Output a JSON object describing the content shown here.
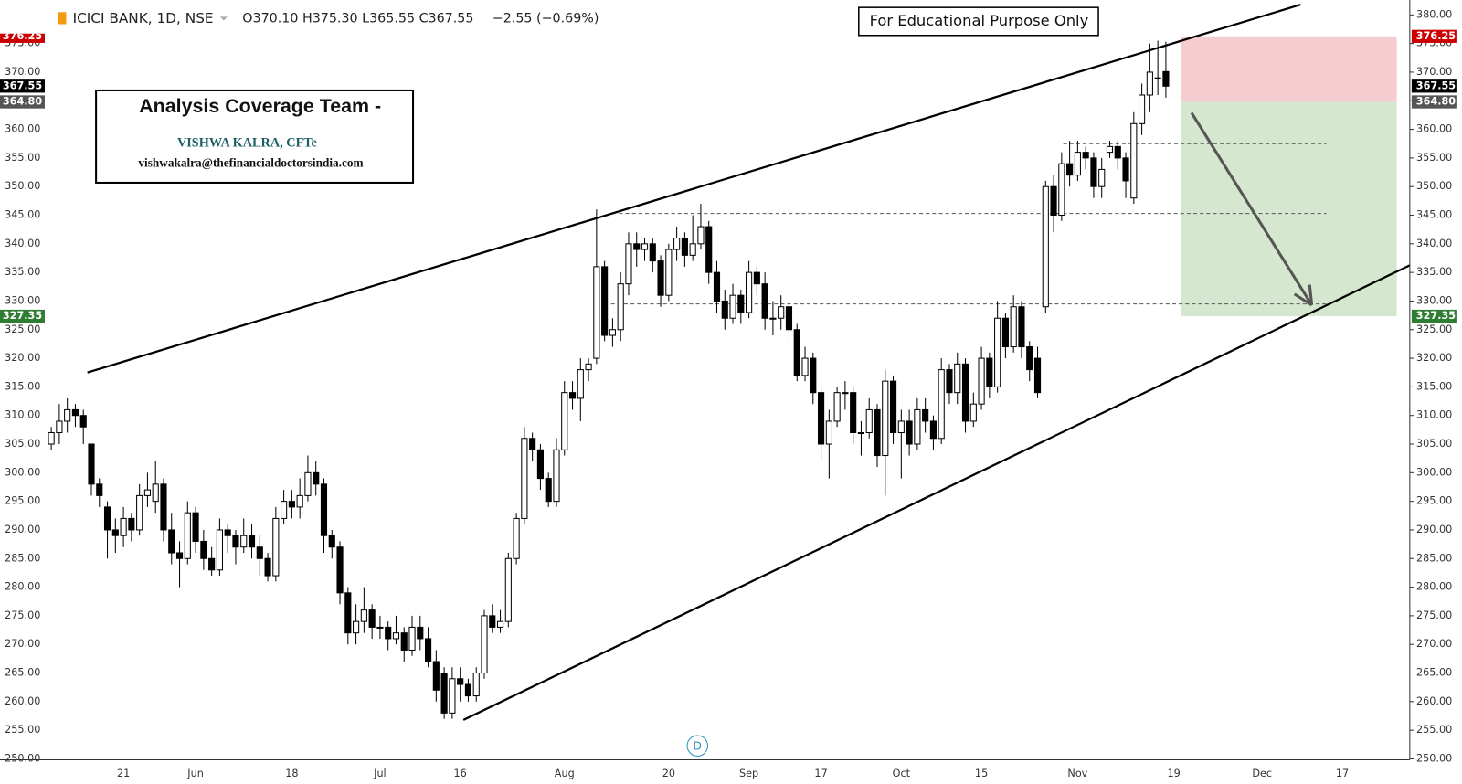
{
  "chart_data": {
    "type": "candlestick",
    "symbol": "ICICI BANK, 1D, NSE",
    "ohlc_text": "O370.10 H375.30 L365.55 C367.55",
    "change_text": "−2.55 (−0.69%)",
    "notice": "For Educational Purpose Only",
    "team_title": "Analysis Coverage Team -",
    "analyst": "VISHWA KALRA, CFTe",
    "email": "vishwakalra@thefinancialdoctorsindia.com",
    "event_marker": "D",
    "up_color": "#ffffff",
    "down_color": "#000000",
    "ylim": [
      250,
      380
    ],
    "yticks": [
      {
        "value": 250,
        "label": "250.00"
      },
      {
        "value": 255,
        "label": "255.00"
      },
      {
        "value": 260,
        "label": "260.00"
      },
      {
        "value": 265,
        "label": "265.00"
      },
      {
        "value": 270,
        "label": "270.00"
      },
      {
        "value": 275,
        "label": "275.00"
      },
      {
        "value": 280,
        "label": "280.00"
      },
      {
        "value": 285,
        "label": "285.00"
      },
      {
        "value": 290,
        "label": "290.00"
      },
      {
        "value": 295,
        "label": "295.00"
      },
      {
        "value": 300,
        "label": "300.00"
      },
      {
        "value": 305,
        "label": "305.00"
      },
      {
        "value": 310,
        "label": "310.00"
      },
      {
        "value": 315,
        "label": "315.00"
      },
      {
        "value": 320,
        "label": "320.00"
      },
      {
        "value": 325,
        "label": "325.00"
      },
      {
        "value": 330,
        "label": "330.00"
      },
      {
        "value": 335,
        "label": "335.00"
      },
      {
        "value": 340,
        "label": "340.00"
      },
      {
        "value": 345,
        "label": "345.00"
      },
      {
        "value": 350,
        "label": "350.00"
      },
      {
        "value": 355,
        "label": "355.00"
      },
      {
        "value": 360,
        "label": "360.00"
      },
      {
        "value": 365,
        "label": "365.00"
      },
      {
        "value": 370,
        "label": "370.00"
      },
      {
        "value": 375,
        "label": "375.00"
      },
      {
        "value": 380,
        "label": "380.00"
      }
    ],
    "price_markers": [
      {
        "value": 376.25,
        "label": "376.25",
        "color": "#cc0000"
      },
      {
        "value": 367.55,
        "label": "367.55",
        "color": "#000000"
      },
      {
        "value": 364.8,
        "label": "364.80",
        "color": "#555555"
      },
      {
        "value": 327.35,
        "label": "327.35",
        "color": "#2e7d32"
      }
    ],
    "categories": [
      null,
      null,
      null,
      null,
      null,
      null,
      null,
      null,
      null,
      "21",
      null,
      null,
      null,
      null,
      null,
      null,
      null,
      null,
      "Jun",
      null,
      null,
      null,
      null,
      null,
      null,
      null,
      null,
      null,
      null,
      null,
      "18",
      null,
      null,
      null,
      null,
      null,
      null,
      null,
      null,
      null,
      null,
      "Jul",
      null,
      null,
      null,
      null,
      null,
      null,
      null,
      null,
      null,
      "16",
      null,
      null,
      null,
      null,
      null,
      null,
      null,
      null,
      null,
      null,
      null,
      null,
      "Aug",
      null,
      null,
      null,
      null,
      null,
      null,
      null,
      null,
      null,
      null,
      null,
      null,
      "20",
      null,
      null,
      null,
      null,
      null,
      null,
      null,
      null,
      null,
      "Sep",
      null,
      null,
      null,
      null,
      null,
      null,
      null,
      null,
      "17",
      null,
      null,
      null,
      null,
      null,
      null,
      null,
      null,
      null,
      "Oct",
      null,
      null,
      null,
      null,
      null,
      null,
      null,
      null,
      null,
      "15",
      null,
      null,
      null,
      null,
      null,
      null,
      null,
      null,
      null,
      null,
      null,
      "Nov",
      null,
      null,
      null,
      null,
      null,
      null,
      null,
      null,
      null,
      null,
      null,
      "19",
      null,
      null,
      null,
      null,
      null,
      null,
      null,
      null,
      null,
      null,
      "Dec",
      null,
      null,
      null,
      null,
      null,
      null,
      null,
      null,
      null,
      "17",
      null,
      null,
      null,
      null,
      null,
      null,
      null,
      null
    ],
    "ohlc": [
      [
        305,
        308,
        304,
        307
      ],
      [
        307,
        312,
        305,
        309
      ],
      [
        309,
        313,
        307,
        311
      ],
      [
        311,
        312,
        308,
        310
      ],
      [
        310,
        311,
        305,
        308
      ],
      [
        305,
        305,
        296,
        298
      ],
      [
        298,
        299,
        294,
        296
      ],
      [
        294,
        295,
        285,
        290
      ],
      [
        290,
        292,
        286,
        289
      ],
      [
        289,
        294,
        287,
        292
      ],
      [
        292,
        293,
        288,
        290
      ],
      [
        290,
        298,
        289,
        296
      ],
      [
        296,
        300,
        294,
        297
      ],
      [
        295,
        302,
        293,
        298
      ],
      [
        298,
        299,
        288,
        290
      ],
      [
        290,
        293,
        284,
        286
      ],
      [
        286,
        288,
        280,
        285
      ],
      [
        285,
        295,
        284,
        293
      ],
      [
        293,
        294,
        286,
        288
      ],
      [
        288,
        290,
        283,
        285
      ],
      [
        285,
        287,
        282,
        283
      ],
      [
        283,
        292,
        282,
        290
      ],
      [
        290,
        291,
        286,
        289
      ],
      [
        289,
        290,
        284,
        287
      ],
      [
        287,
        292,
        286,
        289
      ],
      [
        289,
        291,
        285,
        287
      ],
      [
        287,
        289,
        282,
        285
      ],
      [
        285,
        286,
        281,
        282
      ],
      [
        282,
        294,
        281,
        292
      ],
      [
        292,
        297,
        291,
        295
      ],
      [
        295,
        297,
        292,
        294
      ],
      [
        294,
        299,
        292,
        296
      ],
      [
        296,
        303,
        295,
        300
      ],
      [
        300,
        302,
        296,
        298
      ],
      [
        298,
        299,
        286,
        289
      ],
      [
        289,
        290,
        285,
        287
      ],
      [
        287,
        288,
        277,
        279
      ],
      [
        279,
        280,
        270,
        272
      ],
      [
        272,
        277,
        270,
        274
      ],
      [
        274,
        280,
        272,
        276
      ],
      [
        276,
        277,
        271,
        273
      ],
      [
        273,
        275,
        271,
        273
      ],
      [
        273,
        274,
        269,
        271
      ],
      [
        271,
        275,
        270,
        272
      ],
      [
        272,
        273,
        267,
        269
      ],
      [
        269,
        275,
        268,
        273
      ],
      [
        273,
        275,
        269,
        271
      ],
      [
        271,
        273,
        266,
        267
      ],
      [
        267,
        269,
        260,
        262
      ],
      [
        265,
        266,
        257,
        258
      ],
      [
        258,
        266,
        257,
        264
      ],
      [
        264,
        266,
        260,
        263
      ],
      [
        263,
        264,
        260,
        261
      ],
      [
        261,
        266,
        260,
        265
      ],
      [
        265,
        276,
        264,
        275
      ],
      [
        275,
        277,
        272,
        273
      ],
      [
        273,
        276,
        272,
        274
      ],
      [
        274,
        286,
        273,
        285
      ],
      [
        285,
        293,
        284,
        292
      ],
      [
        292,
        308,
        291,
        306
      ],
      [
        306,
        307,
        302,
        304
      ],
      [
        304,
        305,
        297,
        299
      ],
      [
        299,
        300,
        294,
        295
      ],
      [
        295,
        306,
        294,
        304
      ],
      [
        304,
        316,
        303,
        314
      ],
      [
        314,
        316,
        311,
        313
      ],
      [
        313,
        320,
        309,
        318
      ],
      [
        318,
        320,
        316,
        319
      ],
      [
        320,
        346,
        319,
        336
      ],
      [
        336,
        337,
        323,
        324
      ],
      [
        324,
        327,
        322,
        325
      ],
      [
        325,
        335,
        323,
        333
      ],
      [
        333,
        342,
        331,
        340
      ],
      [
        340,
        342,
        336,
        339
      ],
      [
        339,
        341,
        337,
        340
      ],
      [
        340,
        341,
        335,
        337
      ],
      [
        337,
        338,
        329,
        331
      ],
      [
        331,
        340,
        330,
        339
      ],
      [
        339,
        343,
        337,
        341
      ],
      [
        341,
        342,
        336,
        338
      ],
      [
        338,
        345,
        337,
        340
      ],
      [
        340,
        347,
        339,
        343
      ],
      [
        343,
        344,
        333,
        335
      ],
      [
        335,
        337,
        328,
        330
      ],
      [
        330,
        332,
        325,
        327
      ],
      [
        327,
        333,
        326,
        331
      ],
      [
        331,
        332,
        326,
        328
      ],
      [
        328,
        337,
        327,
        335
      ],
      [
        335,
        336,
        331,
        333
      ],
      [
        333,
        335,
        325,
        327
      ],
      [
        327,
        330,
        324,
        327
      ],
      [
        327,
        331,
        325,
        329
      ],
      [
        329,
        330,
        323,
        325
      ],
      [
        325,
        326,
        316,
        317
      ],
      [
        317,
        322,
        316,
        320
      ],
      [
        320,
        321,
        312,
        314
      ],
      [
        314,
        315,
        302,
        305
      ],
      [
        305,
        311,
        299,
        309
      ],
      [
        309,
        315,
        308,
        314
      ],
      [
        314,
        316,
        311,
        314
      ],
      [
        314,
        315,
        305,
        307
      ],
      [
        307,
        309,
        303,
        307
      ],
      [
        307,
        313,
        306,
        311
      ],
      [
        311,
        312,
        301,
        303
      ],
      [
        303,
        318,
        296,
        316
      ],
      [
        316,
        317,
        305,
        307
      ],
      [
        307,
        311,
        299,
        309
      ],
      [
        309,
        311,
        303,
        305
      ],
      [
        305,
        313,
        304,
        311
      ],
      [
        311,
        313,
        307,
        309
      ],
      [
        309,
        310,
        304,
        306
      ],
      [
        306,
        320,
        305,
        318
      ],
      [
        318,
        319,
        312,
        314
      ],
      [
        314,
        321,
        312,
        319
      ],
      [
        319,
        320,
        307,
        309
      ],
      [
        309,
        314,
        308,
        312
      ],
      [
        312,
        322,
        311,
        320
      ],
      [
        320,
        321,
        313,
        315
      ],
      [
        315,
        330,
        314,
        327
      ],
      [
        327,
        328,
        320,
        322
      ],
      [
        322,
        331,
        321,
        329
      ],
      [
        329,
        330,
        320,
        322
      ],
      [
        322,
        323,
        316,
        318
      ],
      [
        320,
        322,
        313,
        314
      ],
      [
        329,
        351,
        328,
        350
      ],
      [
        350,
        352,
        342,
        345
      ],
      [
        345,
        356,
        344,
        354
      ],
      [
        354,
        358,
        350,
        352
      ],
      [
        352,
        358,
        351,
        356
      ],
      [
        356,
        357,
        353,
        355
      ],
      [
        355,
        356,
        348,
        350
      ],
      [
        350,
        355,
        348,
        353
      ],
      [
        356,
        358,
        355,
        357
      ],
      [
        357,
        358,
        353,
        355
      ],
      [
        355,
        356,
        348,
        351
      ],
      [
        348,
        363,
        347,
        361
      ],
      [
        361,
        368,
        359,
        366
      ],
      [
        366,
        375,
        363,
        370
      ],
      [
        369,
        375.5,
        366,
        369
      ],
      [
        370.1,
        375.3,
        365.55,
        367.55
      ],
      null,
      null,
      null,
      null,
      null,
      null,
      null,
      null,
      null,
      null,
      null,
      null,
      null,
      null,
      null,
      null,
      null,
      null,
      null,
      null,
      null,
      null,
      null,
      null,
      null,
      null,
      null,
      null,
      null,
      null
    ],
    "trendlines": [
      {
        "x": [
          4.5,
          155.8
        ],
        "y": [
          317.5,
          381.8
        ]
      },
      {
        "x": [
          51.4,
          169.8
        ],
        "y": [
          256.8,
          336.5
        ]
      }
    ],
    "levels": [
      {
        "value": 357.5,
        "x": [
          126.2,
          159
        ]
      },
      {
        "value": 345.3,
        "x": [
          70.8,
          159
        ]
      },
      {
        "value": 329.5,
        "x": [
          69.8,
          159
        ]
      }
    ],
    "zones": [
      {
        "x": [
          140.9,
          167.8
        ],
        "y": [
          364.8,
          376.25
        ],
        "color": "#f5cccf"
      },
      {
        "x": [
          140.9,
          167.8
        ],
        "y": [
          327.35,
          364.8
        ],
        "color": "#d6e7d0"
      }
    ],
    "arrow": {
      "x": [
        142.2,
        157.2
      ],
      "y": [
        362.9,
        329.3
      ]
    }
  }
}
